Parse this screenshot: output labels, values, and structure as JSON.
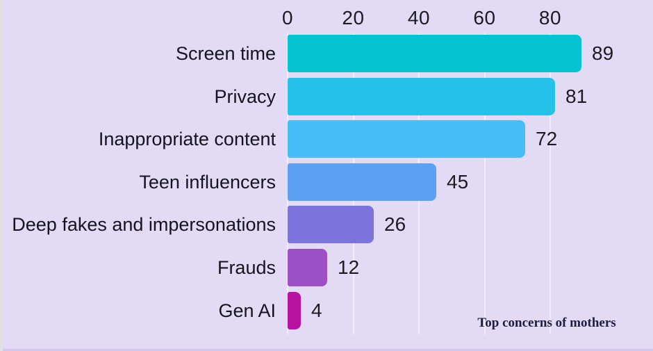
{
  "app": {
    "background_color": "#E3DAF6",
    "left_edge_color": "#E0E1E5",
    "bottom_edge_color": "#D4C5EF",
    "gridline_color": "rgba(255,255,255,0.5)",
    "text_color": "#1B1B24",
    "annotation_color": "#1D1D40"
  },
  "chart_data": {
    "type": "bar",
    "orientation": "horizontal",
    "title": "",
    "annotation": "Top concerns of mothers",
    "categories": [
      "Screen time",
      "Privacy",
      "Inappropriate content",
      "Teen influencers",
      "Deep fakes and impersonations",
      "Frauds",
      "Gen AI"
    ],
    "values": [
      89,
      81,
      72,
      45,
      26,
      12,
      4
    ],
    "bar_colors": [
      "#05C3D3",
      "#26C1E9",
      "#47BCF7",
      "#5CA0F4",
      "#7C73DB",
      "#9D50C6",
      "#B813A2"
    ],
    "x_ticks": [
      "0",
      "20",
      "40",
      "60",
      "80"
    ],
    "x_tick_values": [
      0,
      20,
      40,
      60,
      80
    ],
    "xlim": [
      0,
      111
    ],
    "axis_position": "top",
    "grid": true,
    "value_labels": true,
    "legend": "none"
  }
}
